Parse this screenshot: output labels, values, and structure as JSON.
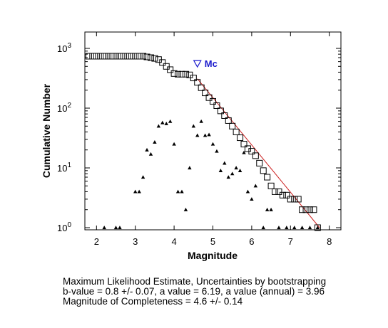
{
  "chart_data": {
    "type": "scatter",
    "xlabel": "Magnitude",
    "ylabel": "Cumulative Number",
    "xlim": [
      1.7,
      8.3
    ],
    "ylim": [
      1,
      1000
    ],
    "yscale": "log",
    "x_ticks": [
      "2",
      "3",
      "4",
      "5",
      "6",
      "7",
      "8"
    ],
    "y_ticks": [
      {
        "base": "10",
        "exp": "0"
      },
      {
        "base": "10",
        "exp": "1"
      },
      {
        "base": "10",
        "exp": "2"
      },
      {
        "base": "10",
        "exp": "3"
      }
    ],
    "grid": false,
    "colors": {
      "cumulative": "#000000",
      "noncumulative": "#000000",
      "fit_line": "#cc2222",
      "mc_marker": "#1a1acc"
    },
    "series": [
      {
        "marker": "square",
        "x": [
          1.8,
          1.9,
          2.0,
          2.1,
          2.2,
          2.3,
          2.4,
          2.5,
          2.6,
          2.7,
          2.8,
          2.9,
          3.0,
          3.1,
          3.2,
          3.3,
          3.4,
          3.5,
          3.6,
          3.7,
          3.8,
          3.9,
          4.0,
          4.1,
          4.2,
          4.3,
          4.4,
          4.5,
          4.6,
          4.7,
          4.8,
          4.9,
          5.0,
          5.1,
          5.2,
          5.3,
          5.4,
          5.5,
          5.6,
          5.7,
          5.8,
          5.9,
          6.0,
          6.1,
          6.2,
          6.3,
          6.4,
          6.5,
          6.6,
          6.7,
          6.8,
          6.9,
          7.0,
          7.1,
          7.2,
          7.3,
          7.4,
          7.5,
          7.6,
          7.7
        ],
        "values": [
          740,
          740,
          740,
          740,
          740,
          740,
          740,
          740,
          740,
          740,
          740,
          740,
          740,
          740,
          740,
          720,
          700,
          680,
          650,
          580,
          500,
          440,
          380,
          370,
          370,
          370,
          360,
          320,
          270,
          220,
          180,
          150,
          130,
          110,
          90,
          75,
          62,
          50,
          40,
          32,
          25,
          21,
          19,
          16,
          12,
          9,
          7,
          5,
          4,
          4,
          3.5,
          3.5,
          3,
          3,
          3,
          2,
          2,
          2,
          2,
          1
        ]
      },
      {
        "marker": "triangle",
        "x": [
          2.2,
          2.5,
          2.6,
          3.0,
          3.1,
          3.2,
          3.3,
          3.4,
          3.5,
          3.6,
          3.7,
          3.8,
          3.9,
          4.0,
          4.1,
          4.2,
          4.3,
          4.4,
          4.5,
          4.6,
          4.7,
          4.8,
          4.9,
          5.0,
          5.1,
          5.2,
          5.3,
          5.4,
          5.5,
          5.6,
          5.7,
          5.8,
          5.9,
          6.0,
          6.1,
          6.3,
          6.4,
          6.5,
          6.7,
          6.9,
          7.1,
          7.3,
          7.5,
          7.7
        ],
        "values": [
          1,
          1,
          1,
          4,
          4,
          7,
          20,
          17,
          27,
          50,
          57,
          55,
          60,
          25,
          4,
          4,
          2,
          10,
          50,
          35,
          60,
          35,
          36,
          25,
          19,
          9,
          12,
          7,
          8,
          10,
          9,
          18,
          4,
          3,
          5,
          1,
          2,
          2,
          1,
          1,
          1,
          1,
          1,
          1
        ]
      }
    ],
    "fit_line": {
      "x": [
        4.6,
        7.75
      ],
      "y": [
        310,
        1.0
      ]
    },
    "mc_marker": {
      "x": 4.6,
      "y": 560,
      "label": "Mc"
    },
    "caption": [
      "Maximum Likelihood Estimate, Uncertainties by bootstrapping",
      "b-value = 0.8 +/- 0.07,  a value = 6.19,  a value (annual) = 3.96",
      "Magnitude of Completeness = 4.6 +/- 0.14"
    ]
  }
}
